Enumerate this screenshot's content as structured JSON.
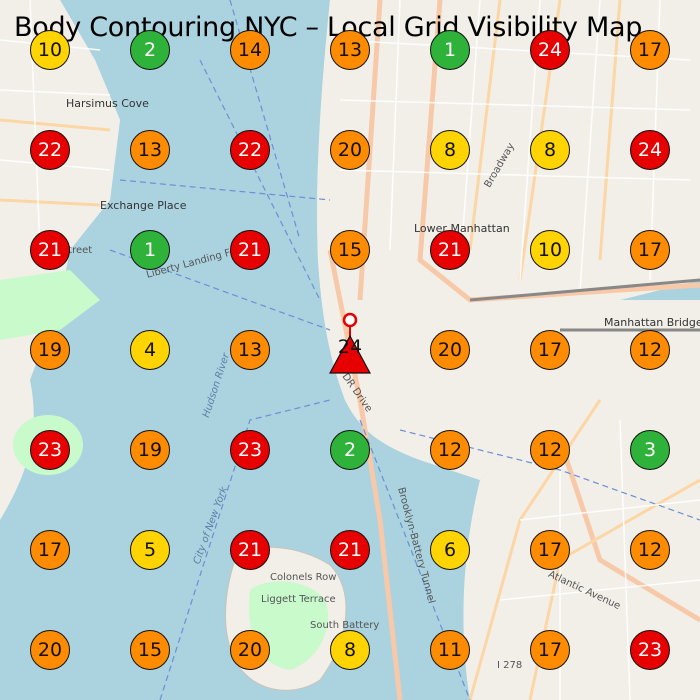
{
  "title": "Body Contouring NYC – Local Grid Visibility Map",
  "color_legend": {
    "green": "#2fb23a",
    "yellow": "#ffd400",
    "orange": "#ff8c00",
    "red": "#e60000"
  },
  "center_pin": {
    "rank": "24",
    "icon": "triangle-pin-icon"
  },
  "grid": [
    [
      {
        "rank": "10",
        "color": "yellow"
      },
      {
        "rank": "2",
        "color": "green"
      },
      {
        "rank": "14",
        "color": "orange"
      },
      {
        "rank": "13",
        "color": "orange"
      },
      {
        "rank": "1",
        "color": "green"
      },
      {
        "rank": "24",
        "color": "red"
      },
      {
        "rank": "17",
        "color": "orange"
      }
    ],
    [
      {
        "rank": "22",
        "color": "red"
      },
      {
        "rank": "13",
        "color": "orange"
      },
      {
        "rank": "22",
        "color": "red"
      },
      {
        "rank": "20",
        "color": "orange"
      },
      {
        "rank": "8",
        "color": "yellow"
      },
      {
        "rank": "8",
        "color": "yellow"
      },
      {
        "rank": "24",
        "color": "red"
      }
    ],
    [
      {
        "rank": "21",
        "color": "red"
      },
      {
        "rank": "1",
        "color": "green"
      },
      {
        "rank": "21",
        "color": "red"
      },
      {
        "rank": "15",
        "color": "orange"
      },
      {
        "rank": "21",
        "color": "red"
      },
      {
        "rank": "10",
        "color": "yellow"
      },
      {
        "rank": "17",
        "color": "orange"
      }
    ],
    [
      {
        "rank": "19",
        "color": "orange"
      },
      {
        "rank": "4",
        "color": "yellow"
      },
      {
        "rank": "13",
        "color": "orange"
      },
      {
        "rank": "",
        "color": "center"
      },
      {
        "rank": "20",
        "color": "orange"
      },
      {
        "rank": "17",
        "color": "orange"
      },
      {
        "rank": "12",
        "color": "orange"
      }
    ],
    [
      {
        "rank": "23",
        "color": "red"
      },
      {
        "rank": "19",
        "color": "orange"
      },
      {
        "rank": "23",
        "color": "red"
      },
      {
        "rank": "2",
        "color": "green"
      },
      {
        "rank": "12",
        "color": "orange"
      },
      {
        "rank": "12",
        "color": "orange"
      },
      {
        "rank": "3",
        "color": "green"
      }
    ],
    [
      {
        "rank": "17",
        "color": "orange"
      },
      {
        "rank": "5",
        "color": "yellow"
      },
      {
        "rank": "21",
        "color": "red"
      },
      {
        "rank": "21",
        "color": "red"
      },
      {
        "rank": "6",
        "color": "yellow"
      },
      {
        "rank": "17",
        "color": "orange"
      },
      {
        "rank": "12",
        "color": "orange"
      }
    ],
    [
      {
        "rank": "20",
        "color": "orange"
      },
      {
        "rank": "15",
        "color": "orange"
      },
      {
        "rank": "20",
        "color": "orange"
      },
      {
        "rank": "8",
        "color": "yellow"
      },
      {
        "rank": "11",
        "color": "orange"
      },
      {
        "rank": "17",
        "color": "orange"
      },
      {
        "rank": "23",
        "color": "red"
      }
    ]
  ],
  "map_labels": {
    "harsimus_cove": "Harsimus Cove",
    "exchange_place": "Exchange Place",
    "lower_manhattan": "Lower Manhattan",
    "manhattan_bridge": "Manhattan Bridge",
    "colonels_row": "Colonels Row",
    "liggett_terrace": "Liggett Terrace",
    "south_battery": "South Battery",
    "hudson_river": "Hudson River",
    "city_of_new_york": "City of New York",
    "fdr_drive": "FDR Drive",
    "brooklyn_battery_tunnel": "Brooklyn-Battery Tunnel",
    "broadway": "Broadway",
    "atlantic_avenue": "Atlantic Avenue",
    "i278": "I 278",
    "essex_street": "Essex Street",
    "liberty_landing": "Liberty Landing Fe"
  }
}
